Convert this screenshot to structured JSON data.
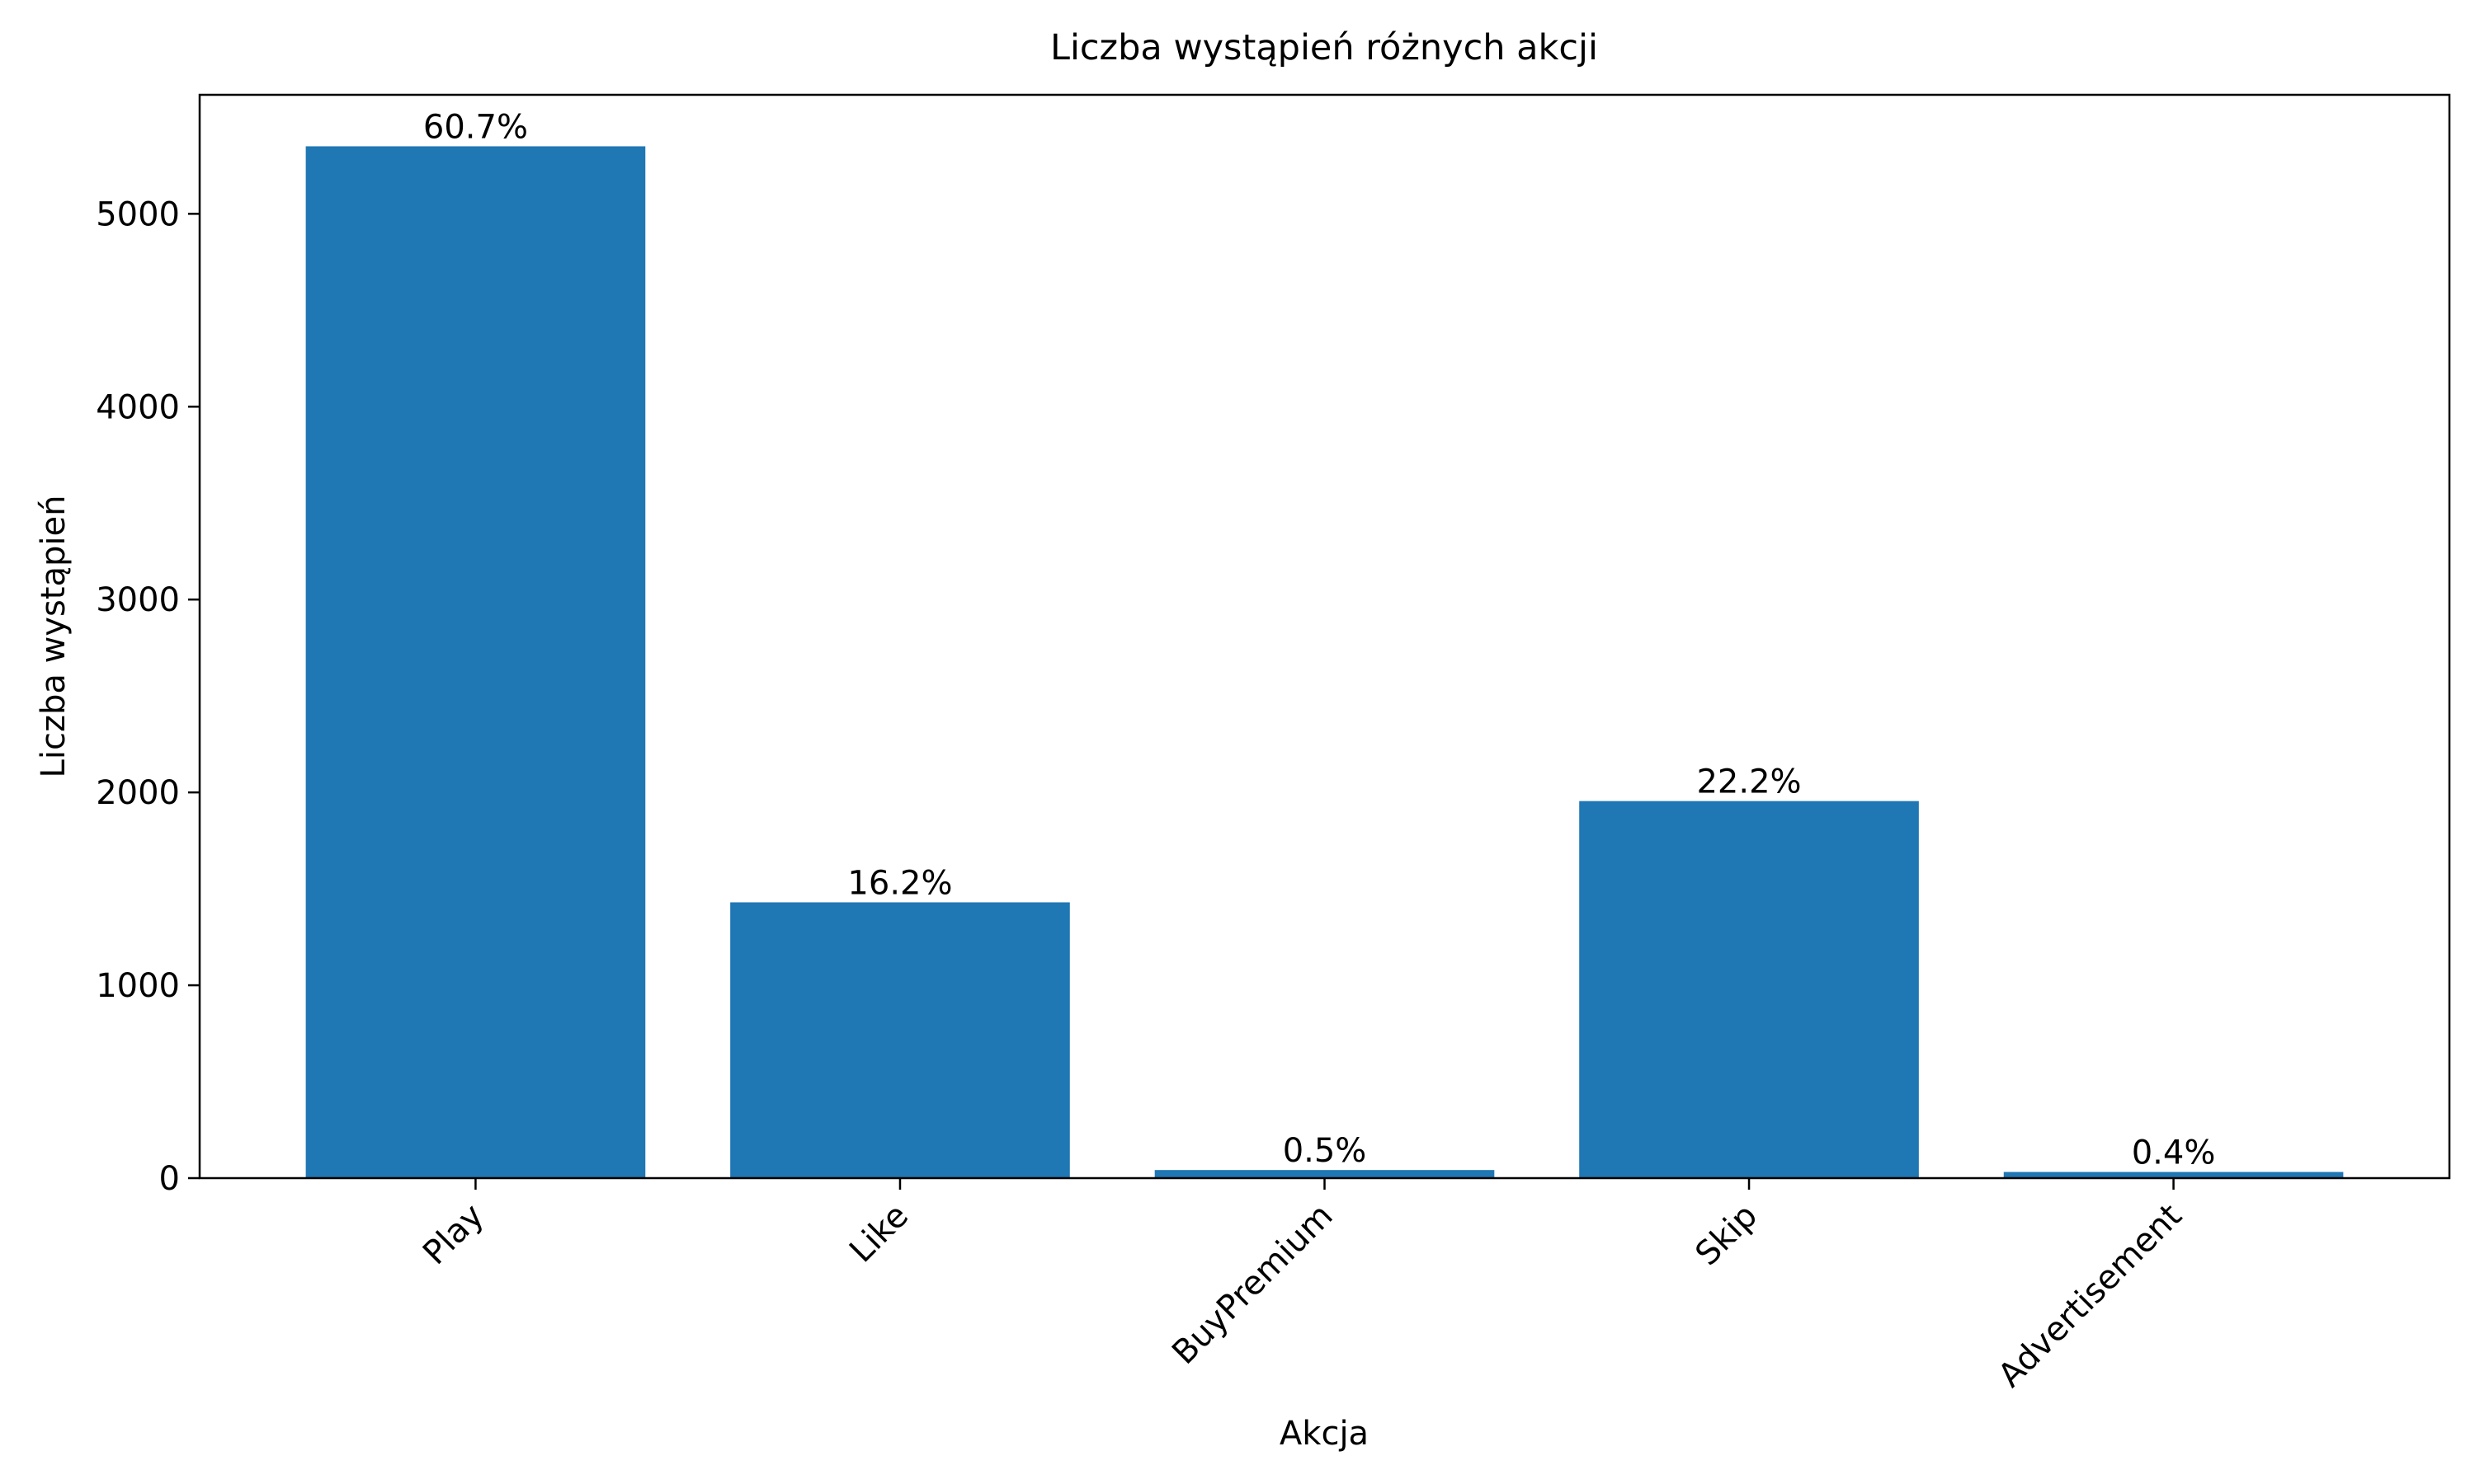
{
  "chart_data": {
    "type": "bar",
    "title": "Liczba wystąpień różnych akcji",
    "xlabel": "Akcja",
    "ylabel": "Liczba wystąpień",
    "categories": [
      "Play",
      "Like",
      "BuyPremium",
      "Skip",
      "Advertisement"
    ],
    "values": [
      5350,
      1430,
      42,
      1955,
      32
    ],
    "bar_labels": [
      "60.7%",
      "16.2%",
      "0.5%",
      "22.2%",
      "0.4%"
    ],
    "yticks": [
      0,
      1000,
      2000,
      3000,
      4000,
      5000
    ],
    "ylim": [
      0,
      5617
    ],
    "grid": false,
    "legend": "none",
    "bar_color": "#1f77b4"
  }
}
